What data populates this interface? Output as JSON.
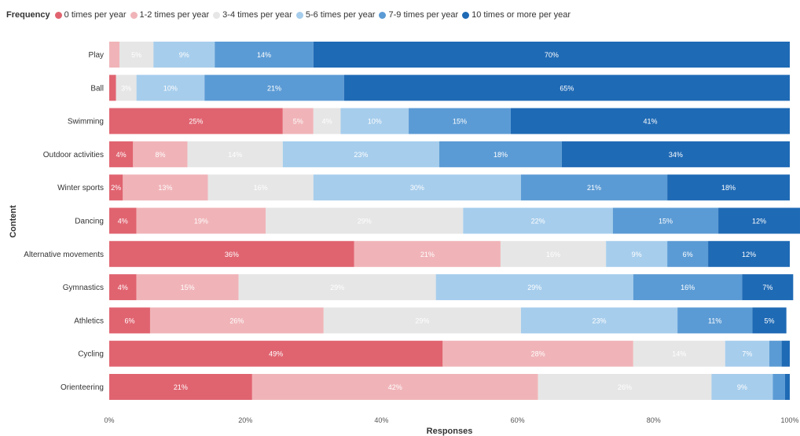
{
  "chart_data": {
    "type": "bar",
    "orientation": "horizontal",
    "stacked": "100%",
    "legend_title": "Frequency",
    "legend_position": "top-left",
    "xlabel": "Responses",
    "ylabel": "Content",
    "xlim": [
      0,
      100
    ],
    "x_ticks": [
      "0%",
      "20%",
      "40%",
      "60%",
      "80%",
      "100%"
    ],
    "grid": false,
    "categories": [
      "Play",
      "Ball",
      "Swimming",
      "Outdoor activities",
      "Winter sports",
      "Dancing",
      "Alternative movements",
      "Gymnastics",
      "Athletics",
      "Cycling",
      "Orienteering"
    ],
    "series": [
      {
        "name": "0 times per year",
        "color": "#e06470",
        "label_color": "#ffffff",
        "values": [
          0,
          1,
          25.5,
          3.5,
          2,
          4,
          36,
          4,
          6,
          49,
          21
        ]
      },
      {
        "name": "1-2 times per year",
        "color": "#f0b4b8",
        "label_color": "#ffffff",
        "values": [
          1.5,
          0,
          4.5,
          8,
          12.5,
          19,
          21.5,
          15,
          25.5,
          28,
          42
        ]
      },
      {
        "name": "3-4 times per year",
        "color": "#e6e6e6",
        "label_color": "#ffffff",
        "values": [
          5,
          3,
          4,
          14,
          15.5,
          29,
          15.5,
          29,
          29,
          13.5,
          25.5
        ]
      },
      {
        "name": "5-6 times per year",
        "color": "#a6cdec",
        "label_color": "#ffffff",
        "values": [
          9,
          10,
          10,
          23,
          30.5,
          22,
          9,
          29,
          23,
          6.5,
          9
        ]
      },
      {
        "name": "7-9 times per year",
        "color": "#5b9bd5",
        "label_color": "#ffffff",
        "values": [
          14.5,
          20.5,
          15,
          18,
          21.5,
          15.5,
          6,
          16,
          11,
          1.8,
          1.8
        ]
      },
      {
        "name": "10 times or more per year",
        "color": "#1f6ab5",
        "label_color": "#ffffff",
        "values": [
          70,
          65.5,
          41,
          33.5,
          18,
          12,
          12,
          7.5,
          5,
          1.2,
          0.7
        ]
      }
    ],
    "data_labels": [
      [
        "",
        "",
        "5%",
        "9%",
        "14%",
        "70%"
      ],
      [
        "",
        "",
        "3%",
        "10%",
        "21%",
        "65%"
      ],
      [
        "25%",
        "5%",
        "4%",
        "10%",
        "15%",
        "41%"
      ],
      [
        "4%",
        "8%",
        "14%",
        "23%",
        "18%",
        "34%"
      ],
      [
        "2%",
        "13%",
        "16%",
        "30%",
        "21%",
        "18%"
      ],
      [
        "4%",
        "19%",
        "29%",
        "22%",
        "15%",
        "12%"
      ],
      [
        "36%",
        "21%",
        "16%",
        "9%",
        "6%",
        "12%"
      ],
      [
        "4%",
        "15%",
        "29%",
        "29%",
        "16%",
        "7%"
      ],
      [
        "6%",
        "26%",
        "29%",
        "23%",
        "11%",
        "5%"
      ],
      [
        "49%",
        "28%",
        "14%",
        "7%",
        "",
        ""
      ],
      [
        "21%",
        "42%",
        "26%",
        "9%",
        "",
        ""
      ]
    ]
  }
}
